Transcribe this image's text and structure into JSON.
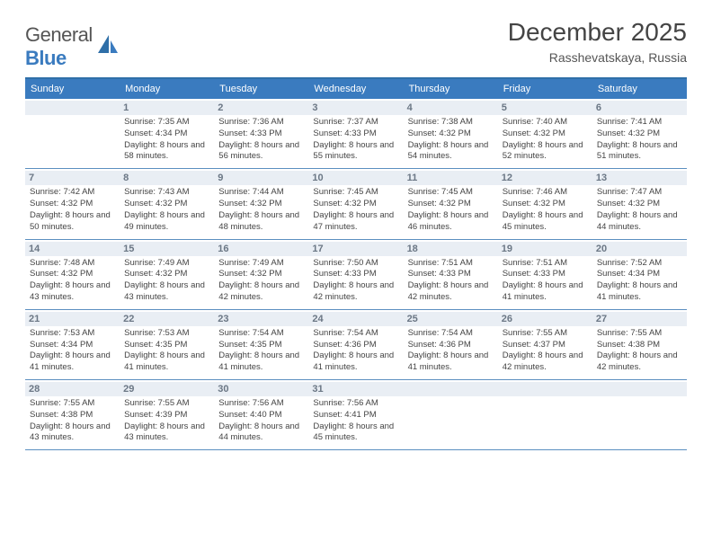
{
  "logo": {
    "word1": "General",
    "word2": "Blue"
  },
  "title": "December 2025",
  "location": "Rasshevatskaya, Russia",
  "colors": {
    "header_bg": "#3a7bbf",
    "header_border": "#2f6fa8",
    "row_border": "#5b8fc0",
    "daynum_bg": "#e9eef4",
    "daynum_fg": "#6b7785",
    "text": "#444444"
  },
  "dow": [
    "Sunday",
    "Monday",
    "Tuesday",
    "Wednesday",
    "Thursday",
    "Friday",
    "Saturday"
  ],
  "weeks": [
    [
      {
        "n": "",
        "sunrise": "",
        "sunset": "",
        "daylight": ""
      },
      {
        "n": "1",
        "sunrise": "7:35 AM",
        "sunset": "4:34 PM",
        "daylight": "8 hours and 58 minutes."
      },
      {
        "n": "2",
        "sunrise": "7:36 AM",
        "sunset": "4:33 PM",
        "daylight": "8 hours and 56 minutes."
      },
      {
        "n": "3",
        "sunrise": "7:37 AM",
        "sunset": "4:33 PM",
        "daylight": "8 hours and 55 minutes."
      },
      {
        "n": "4",
        "sunrise": "7:38 AM",
        "sunset": "4:32 PM",
        "daylight": "8 hours and 54 minutes."
      },
      {
        "n": "5",
        "sunrise": "7:40 AM",
        "sunset": "4:32 PM",
        "daylight": "8 hours and 52 minutes."
      },
      {
        "n": "6",
        "sunrise": "7:41 AM",
        "sunset": "4:32 PM",
        "daylight": "8 hours and 51 minutes."
      }
    ],
    [
      {
        "n": "7",
        "sunrise": "7:42 AM",
        "sunset": "4:32 PM",
        "daylight": "8 hours and 50 minutes."
      },
      {
        "n": "8",
        "sunrise": "7:43 AM",
        "sunset": "4:32 PM",
        "daylight": "8 hours and 49 minutes."
      },
      {
        "n": "9",
        "sunrise": "7:44 AM",
        "sunset": "4:32 PM",
        "daylight": "8 hours and 48 minutes."
      },
      {
        "n": "10",
        "sunrise": "7:45 AM",
        "sunset": "4:32 PM",
        "daylight": "8 hours and 47 minutes."
      },
      {
        "n": "11",
        "sunrise": "7:45 AM",
        "sunset": "4:32 PM",
        "daylight": "8 hours and 46 minutes."
      },
      {
        "n": "12",
        "sunrise": "7:46 AM",
        "sunset": "4:32 PM",
        "daylight": "8 hours and 45 minutes."
      },
      {
        "n": "13",
        "sunrise": "7:47 AM",
        "sunset": "4:32 PM",
        "daylight": "8 hours and 44 minutes."
      }
    ],
    [
      {
        "n": "14",
        "sunrise": "7:48 AM",
        "sunset": "4:32 PM",
        "daylight": "8 hours and 43 minutes."
      },
      {
        "n": "15",
        "sunrise": "7:49 AM",
        "sunset": "4:32 PM",
        "daylight": "8 hours and 43 minutes."
      },
      {
        "n": "16",
        "sunrise": "7:49 AM",
        "sunset": "4:32 PM",
        "daylight": "8 hours and 42 minutes."
      },
      {
        "n": "17",
        "sunrise": "7:50 AM",
        "sunset": "4:33 PM",
        "daylight": "8 hours and 42 minutes."
      },
      {
        "n": "18",
        "sunrise": "7:51 AM",
        "sunset": "4:33 PM",
        "daylight": "8 hours and 42 minutes."
      },
      {
        "n": "19",
        "sunrise": "7:51 AM",
        "sunset": "4:33 PM",
        "daylight": "8 hours and 41 minutes."
      },
      {
        "n": "20",
        "sunrise": "7:52 AM",
        "sunset": "4:34 PM",
        "daylight": "8 hours and 41 minutes."
      }
    ],
    [
      {
        "n": "21",
        "sunrise": "7:53 AM",
        "sunset": "4:34 PM",
        "daylight": "8 hours and 41 minutes."
      },
      {
        "n": "22",
        "sunrise": "7:53 AM",
        "sunset": "4:35 PM",
        "daylight": "8 hours and 41 minutes."
      },
      {
        "n": "23",
        "sunrise": "7:54 AM",
        "sunset": "4:35 PM",
        "daylight": "8 hours and 41 minutes."
      },
      {
        "n": "24",
        "sunrise": "7:54 AM",
        "sunset": "4:36 PM",
        "daylight": "8 hours and 41 minutes."
      },
      {
        "n": "25",
        "sunrise": "7:54 AM",
        "sunset": "4:36 PM",
        "daylight": "8 hours and 41 minutes."
      },
      {
        "n": "26",
        "sunrise": "7:55 AM",
        "sunset": "4:37 PM",
        "daylight": "8 hours and 42 minutes."
      },
      {
        "n": "27",
        "sunrise": "7:55 AM",
        "sunset": "4:38 PM",
        "daylight": "8 hours and 42 minutes."
      }
    ],
    [
      {
        "n": "28",
        "sunrise": "7:55 AM",
        "sunset": "4:38 PM",
        "daylight": "8 hours and 43 minutes."
      },
      {
        "n": "29",
        "sunrise": "7:55 AM",
        "sunset": "4:39 PM",
        "daylight": "8 hours and 43 minutes."
      },
      {
        "n": "30",
        "sunrise": "7:56 AM",
        "sunset": "4:40 PM",
        "daylight": "8 hours and 44 minutes."
      },
      {
        "n": "31",
        "sunrise": "7:56 AM",
        "sunset": "4:41 PM",
        "daylight": "8 hours and 45 minutes."
      },
      {
        "n": "",
        "sunrise": "",
        "sunset": "",
        "daylight": ""
      },
      {
        "n": "",
        "sunrise": "",
        "sunset": "",
        "daylight": ""
      },
      {
        "n": "",
        "sunrise": "",
        "sunset": "",
        "daylight": ""
      }
    ]
  ],
  "labels": {
    "sunrise": "Sunrise:",
    "sunset": "Sunset:",
    "daylight": "Daylight:"
  }
}
